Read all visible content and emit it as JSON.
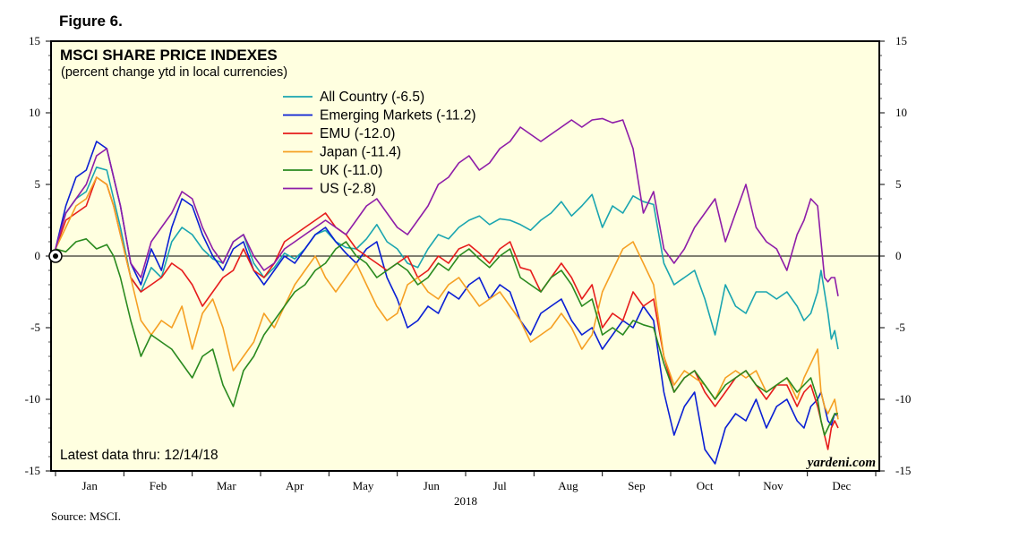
{
  "figure_label": "Figure 6.",
  "source": "Source: MSCI.",
  "chart_data": {
    "type": "line",
    "title": "MSCI SHARE PRICE INDEXES",
    "subtitle": "(percent change ytd in local currencies)",
    "xlabel": "2018",
    "ylabel": "",
    "ylim": [
      -15,
      15
    ],
    "yticks": [
      -15,
      -10,
      -5,
      0,
      5,
      10,
      15
    ],
    "months": [
      "Jan",
      "Feb",
      "Mar",
      "Apr",
      "May",
      "Jun",
      "Jul",
      "Aug",
      "Sep",
      "Oct",
      "Nov",
      "Dec"
    ],
    "x_unit": "months since Jan 1, 2018",
    "annotation": "Latest data thru: 12/14/18",
    "watermark": "yardeni.com",
    "legend_position": "top-center",
    "series": [
      {
        "name": "All Country (-6.5)",
        "color": "#1aa5b0",
        "x": [
          0,
          0.15,
          0.3,
          0.45,
          0.6,
          0.75,
          0.85,
          0.95,
          1.1,
          1.25,
          1.4,
          1.55,
          1.7,
          1.85,
          2.0,
          2.15,
          2.3,
          2.45,
          2.6,
          2.75,
          2.9,
          3.05,
          3.2,
          3.35,
          3.5,
          3.65,
          3.8,
          3.95,
          4.1,
          4.25,
          4.4,
          4.55,
          4.7,
          4.85,
          5.0,
          5.15,
          5.3,
          5.45,
          5.6,
          5.75,
          5.9,
          6.05,
          6.2,
          6.35,
          6.5,
          6.65,
          6.8,
          6.95,
          7.1,
          7.25,
          7.4,
          7.55,
          7.7,
          7.85,
          8.0,
          8.15,
          8.3,
          8.45,
          8.6,
          8.75,
          8.9,
          9.05,
          9.2,
          9.35,
          9.5,
          9.65,
          9.8,
          9.95,
          10.1,
          10.25,
          10.4,
          10.55,
          10.7,
          10.85,
          10.95,
          11.05,
          11.15,
          11.2,
          11.25,
          11.3,
          11.35,
          11.4,
          11.45
        ],
        "y": [
          0.5,
          3.0,
          4.0,
          4.5,
          6.2,
          6.0,
          4.0,
          2.0,
          -1.5,
          -2.5,
          -0.8,
          -1.5,
          1.0,
          2.0,
          1.5,
          0.5,
          -0.2,
          -0.5,
          1.0,
          1.5,
          -0.5,
          -1.5,
          -0.8,
          0.2,
          -0.2,
          0.5,
          1.5,
          1.8,
          1.0,
          0.6,
          0.5,
          1.2,
          2.2,
          1.0,
          0.5,
          -0.5,
          -0.8,
          0.5,
          1.5,
          1.2,
          2.0,
          2.5,
          2.8,
          2.2,
          2.6,
          2.5,
          2.2,
          1.8,
          2.5,
          3.0,
          3.8,
          2.8,
          3.5,
          4.3,
          2.0,
          3.5,
          3.0,
          4.2,
          3.8,
          3.6,
          -0.5,
          -2.0,
          -1.5,
          -1.0,
          -3.0,
          -5.5,
          -2.0,
          -3.5,
          -4.0,
          -2.5,
          -2.5,
          -3.0,
          -2.5,
          -3.5,
          -4.5,
          -4.0,
          -2.5,
          -1.0,
          -2.5,
          -4.0,
          -5.8,
          -5.2,
          -6.5
        ]
      },
      {
        "name": "Emerging Markets (-11.2)",
        "color": "#0a1fd4",
        "x": [
          0,
          0.15,
          0.3,
          0.45,
          0.6,
          0.75,
          0.85,
          0.95,
          1.1,
          1.25,
          1.4,
          1.55,
          1.7,
          1.85,
          2.0,
          2.15,
          2.3,
          2.45,
          2.6,
          2.75,
          2.9,
          3.05,
          3.2,
          3.35,
          3.5,
          3.65,
          3.8,
          3.95,
          4.1,
          4.25,
          4.4,
          4.55,
          4.7,
          4.85,
          5.0,
          5.15,
          5.3,
          5.45,
          5.6,
          5.75,
          5.9,
          6.05,
          6.2,
          6.35,
          6.5,
          6.65,
          6.8,
          6.95,
          7.1,
          7.25,
          7.4,
          7.55,
          7.7,
          7.85,
          8.0,
          8.15,
          8.3,
          8.45,
          8.6,
          8.75,
          8.9,
          9.05,
          9.2,
          9.35,
          9.5,
          9.65,
          9.8,
          9.95,
          10.1,
          10.25,
          10.4,
          10.55,
          10.7,
          10.85,
          10.95,
          11.05,
          11.15,
          11.2,
          11.25,
          11.3,
          11.35,
          11.4,
          11.45
        ],
        "y": [
          0.5,
          3.5,
          5.5,
          6.0,
          8.0,
          7.5,
          5.5,
          3.5,
          -0.5,
          -2.0,
          0.5,
          -1.0,
          2.0,
          4.0,
          3.5,
          1.5,
          0.0,
          -1.0,
          0.5,
          1.0,
          -1.0,
          -2.0,
          -1.0,
          0.0,
          -0.5,
          0.5,
          1.5,
          2.0,
          1.0,
          0.2,
          -0.5,
          0.5,
          1.0,
          -1.5,
          -3.0,
          -5.0,
          -4.5,
          -3.5,
          -4.0,
          -2.5,
          -3.0,
          -2.0,
          -1.5,
          -3.0,
          -2.0,
          -2.5,
          -4.5,
          -5.5,
          -4.0,
          -3.5,
          -3.0,
          -4.5,
          -5.5,
          -5.0,
          -6.5,
          -5.5,
          -4.5,
          -5.0,
          -3.5,
          -4.5,
          -9.5,
          -12.5,
          -10.5,
          -9.5,
          -13.5,
          -14.5,
          -12.0,
          -11.0,
          -11.5,
          -10.0,
          -12.0,
          -10.5,
          -10.0,
          -11.5,
          -12.0,
          -10.5,
          -10.0,
          -9.5,
          -10.5,
          -11.5,
          -11.8,
          -11.0,
          -11.2
        ]
      },
      {
        "name": "EMU (-12.0)",
        "color": "#e61c1c",
        "x": [
          0,
          0.15,
          0.3,
          0.45,
          0.6,
          0.75,
          0.85,
          0.95,
          1.1,
          1.25,
          1.4,
          1.55,
          1.7,
          1.85,
          2.0,
          2.15,
          2.3,
          2.45,
          2.6,
          2.75,
          2.9,
          3.05,
          3.2,
          3.35,
          3.5,
          3.65,
          3.8,
          3.95,
          4.1,
          4.25,
          4.4,
          4.55,
          4.7,
          4.85,
          5.0,
          5.15,
          5.3,
          5.45,
          5.6,
          5.75,
          5.9,
          6.05,
          6.2,
          6.35,
          6.5,
          6.65,
          6.8,
          6.95,
          7.1,
          7.25,
          7.4,
          7.55,
          7.7,
          7.85,
          8.0,
          8.15,
          8.3,
          8.45,
          8.6,
          8.75,
          8.9,
          9.05,
          9.2,
          9.35,
          9.5,
          9.65,
          9.8,
          9.95,
          10.1,
          10.25,
          10.4,
          10.55,
          10.7,
          10.85,
          10.95,
          11.05,
          11.15,
          11.2,
          11.25,
          11.3,
          11.35,
          11.4,
          11.45
        ],
        "y": [
          0.5,
          2.5,
          3.0,
          3.5,
          5.5,
          5.0,
          3.5,
          1.5,
          -1.5,
          -2.5,
          -2.0,
          -1.5,
          -0.5,
          -1.0,
          -2.0,
          -3.5,
          -2.5,
          -1.5,
          -1.0,
          0.5,
          -1.0,
          -1.5,
          -0.5,
          1.0,
          1.5,
          2.0,
          2.5,
          3.0,
          2.0,
          1.5,
          0.5,
          0.0,
          -0.5,
          -1.0,
          -0.5,
          0.0,
          -1.5,
          -1.0,
          0.0,
          -0.5,
          0.5,
          0.8,
          0.2,
          -0.5,
          0.5,
          1.0,
          -0.8,
          -1.0,
          -2.5,
          -1.5,
          -0.5,
          -1.5,
          -3.0,
          -2.0,
          -5.0,
          -4.0,
          -4.5,
          -2.5,
          -3.5,
          -3.0,
          -7.0,
          -9.5,
          -8.5,
          -8.0,
          -9.5,
          -10.5,
          -9.5,
          -8.5,
          -8.0,
          -9.0,
          -10.0,
          -9.0,
          -9.0,
          -10.5,
          -9.5,
          -9.0,
          -10.5,
          -11.5,
          -12.5,
          -13.5,
          -12.0,
          -11.5,
          -12.0
        ]
      },
      {
        "name": "Japan (-11.4)",
        "color": "#f5a023",
        "x": [
          0,
          0.15,
          0.3,
          0.45,
          0.6,
          0.75,
          0.85,
          0.95,
          1.1,
          1.25,
          1.4,
          1.55,
          1.7,
          1.85,
          2.0,
          2.15,
          2.3,
          2.45,
          2.6,
          2.75,
          2.9,
          3.05,
          3.2,
          3.35,
          3.5,
          3.65,
          3.8,
          3.95,
          4.1,
          4.25,
          4.4,
          4.55,
          4.7,
          4.85,
          5.0,
          5.15,
          5.3,
          5.45,
          5.6,
          5.75,
          5.9,
          6.05,
          6.2,
          6.35,
          6.5,
          6.65,
          6.8,
          6.95,
          7.1,
          7.25,
          7.4,
          7.55,
          7.7,
          7.85,
          8.0,
          8.15,
          8.3,
          8.45,
          8.6,
          8.75,
          8.9,
          9.05,
          9.2,
          9.35,
          9.5,
          9.65,
          9.8,
          9.95,
          10.1,
          10.25,
          10.4,
          10.55,
          10.7,
          10.85,
          10.95,
          11.05,
          11.15,
          11.2,
          11.25,
          11.3,
          11.35,
          11.4,
          11.45
        ],
        "y": [
          0.5,
          2.0,
          3.5,
          4.0,
          5.5,
          5.0,
          3.5,
          1.5,
          -1.5,
          -4.5,
          -5.5,
          -4.5,
          -5.0,
          -3.5,
          -6.5,
          -4.0,
          -3.0,
          -5.0,
          -8.0,
          -7.0,
          -6.0,
          -4.0,
          -5.0,
          -3.5,
          -2.0,
          -1.0,
          0.0,
          -1.5,
          -2.5,
          -1.5,
          -0.5,
          -2.0,
          -3.5,
          -4.5,
          -4.0,
          -2.0,
          -1.5,
          -2.5,
          -3.0,
          -2.0,
          -1.5,
          -2.5,
          -3.5,
          -3.0,
          -2.5,
          -3.5,
          -4.5,
          -6.0,
          -5.5,
          -5.0,
          -4.0,
          -5.0,
          -6.5,
          -5.5,
          -2.5,
          -1.0,
          0.5,
          1.0,
          -0.5,
          -2.0,
          -7.0,
          -9.0,
          -8.0,
          -8.5,
          -9.0,
          -10.0,
          -8.5,
          -8.0,
          -8.5,
          -8.0,
          -9.5,
          -9.0,
          -8.5,
          -10.0,
          -8.5,
          -7.5,
          -6.5,
          -9.5,
          -10.5,
          -11.0,
          -10.5,
          -10.0,
          -11.4
        ]
      },
      {
        "name": "UK (-11.0)",
        "color": "#2a8a1f",
        "x": [
          0,
          0.15,
          0.3,
          0.45,
          0.6,
          0.75,
          0.85,
          0.95,
          1.1,
          1.25,
          1.4,
          1.55,
          1.7,
          1.85,
          2.0,
          2.15,
          2.3,
          2.45,
          2.6,
          2.75,
          2.9,
          3.05,
          3.2,
          3.35,
          3.5,
          3.65,
          3.8,
          3.95,
          4.1,
          4.25,
          4.4,
          4.55,
          4.7,
          4.85,
          5.0,
          5.15,
          5.3,
          5.45,
          5.6,
          5.75,
          5.9,
          6.05,
          6.2,
          6.35,
          6.5,
          6.65,
          6.8,
          6.95,
          7.1,
          7.25,
          7.4,
          7.55,
          7.7,
          7.85,
          8.0,
          8.15,
          8.3,
          8.45,
          8.6,
          8.75,
          8.9,
          9.05,
          9.2,
          9.35,
          9.5,
          9.65,
          9.8,
          9.95,
          10.1,
          10.25,
          10.4,
          10.55,
          10.7,
          10.85,
          10.95,
          11.05,
          11.15,
          11.2,
          11.25,
          11.3,
          11.35,
          11.4,
          11.45
        ],
        "y": [
          0.5,
          0.3,
          1.0,
          1.2,
          0.5,
          0.8,
          0.0,
          -1.5,
          -4.5,
          -7.0,
          -5.5,
          -6.0,
          -6.5,
          -7.5,
          -8.5,
          -7.0,
          -6.5,
          -9.0,
          -10.5,
          -8.0,
          -7.0,
          -5.5,
          -4.5,
          -3.5,
          -2.5,
          -2.0,
          -1.0,
          -0.5,
          0.5,
          1.0,
          0.0,
          -0.5,
          -1.5,
          -1.0,
          -0.5,
          -1.0,
          -2.0,
          -1.5,
          -0.5,
          -1.0,
          0.0,
          0.5,
          -0.2,
          -0.8,
          0.0,
          0.5,
          -1.5,
          -2.0,
          -2.5,
          -1.5,
          -1.0,
          -2.0,
          -3.5,
          -3.0,
          -5.5,
          -5.0,
          -5.5,
          -4.5,
          -4.8,
          -5.0,
          -7.5,
          -9.5,
          -8.5,
          -8.0,
          -9.0,
          -10.0,
          -9.0,
          -8.5,
          -8.0,
          -9.0,
          -9.5,
          -9.0,
          -8.5,
          -9.5,
          -9.0,
          -8.5,
          -10.0,
          -11.5,
          -12.5,
          -12.0,
          -11.5,
          -11.0,
          -11.0
        ]
      },
      {
        "name": "US (-2.8)",
        "color": "#8e1da8",
        "x": [
          0,
          0.15,
          0.3,
          0.45,
          0.6,
          0.75,
          0.85,
          0.95,
          1.1,
          1.25,
          1.4,
          1.55,
          1.7,
          1.85,
          2.0,
          2.15,
          2.3,
          2.45,
          2.6,
          2.75,
          2.9,
          3.05,
          3.2,
          3.35,
          3.5,
          3.65,
          3.8,
          3.95,
          4.1,
          4.25,
          4.4,
          4.55,
          4.7,
          4.85,
          5.0,
          5.15,
          5.3,
          5.45,
          5.6,
          5.75,
          5.9,
          6.05,
          6.2,
          6.35,
          6.5,
          6.65,
          6.8,
          6.95,
          7.1,
          7.25,
          7.4,
          7.55,
          7.7,
          7.85,
          8.0,
          8.15,
          8.3,
          8.45,
          8.6,
          8.75,
          8.9,
          9.05,
          9.2,
          9.35,
          9.5,
          9.65,
          9.8,
          9.95,
          10.1,
          10.25,
          10.4,
          10.55,
          10.7,
          10.85,
          10.95,
          11.05,
          11.15,
          11.2,
          11.25,
          11.3,
          11.35,
          11.4,
          11.45
        ],
        "y": [
          0.5,
          3.0,
          4.0,
          5.0,
          7.0,
          7.5,
          5.5,
          3.5,
          -0.5,
          -1.5,
          1.0,
          2.0,
          3.0,
          4.5,
          4.0,
          2.0,
          0.5,
          -0.5,
          1.0,
          1.5,
          0.0,
          -1.0,
          -0.5,
          0.5,
          1.0,
          1.5,
          2.0,
          2.5,
          2.0,
          1.5,
          2.5,
          3.5,
          4.0,
          3.0,
          2.0,
          1.5,
          2.5,
          3.5,
          5.0,
          5.5,
          6.5,
          7.0,
          6.0,
          6.5,
          7.5,
          8.0,
          9.0,
          8.5,
          8.0,
          8.5,
          9.0,
          9.5,
          9.0,
          9.5,
          9.6,
          9.3,
          9.5,
          7.5,
          3.0,
          4.5,
          0.5,
          -0.5,
          0.5,
          2.0,
          3.0,
          4.0,
          1.0,
          3.0,
          5.0,
          2.0,
          1.0,
          0.5,
          -1.0,
          1.5,
          2.5,
          4.0,
          3.5,
          1.0,
          -1.5,
          -1.8,
          -1.5,
          -1.5,
          -2.8
        ]
      }
    ]
  }
}
